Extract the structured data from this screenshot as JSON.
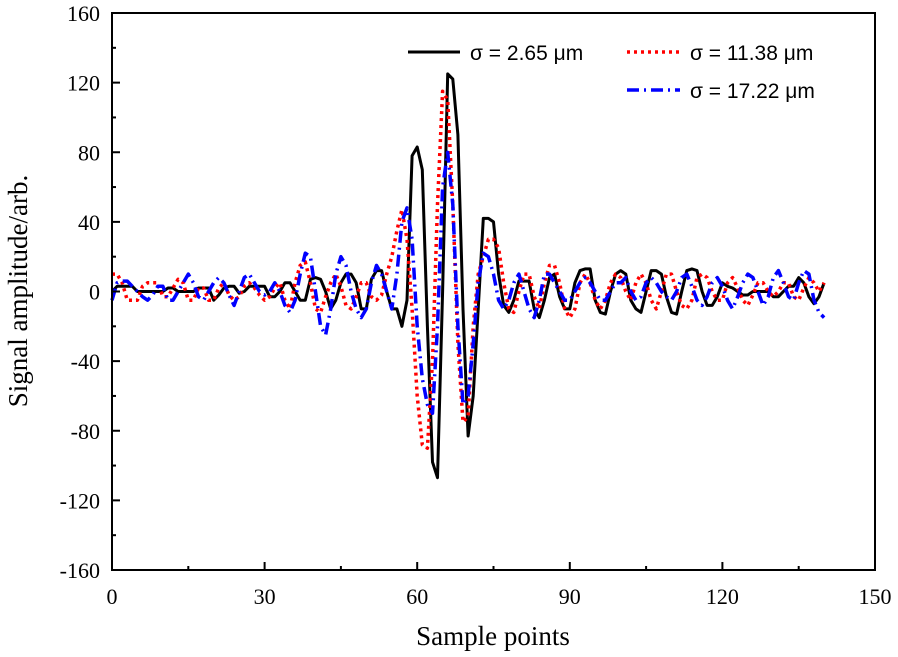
{
  "chart_data": {
    "type": "line",
    "title": "",
    "xlabel": "Sample points",
    "ylabel": "Signal amplitude/arb.",
    "xlim": [
      0,
      150
    ],
    "ylim": [
      -160,
      160
    ],
    "xticks": [
      "0",
      "30",
      "60",
      "90",
      "120",
      "150"
    ],
    "yticks": [
      "160",
      "120",
      "80",
      "40",
      "0",
      "-40",
      "-80",
      "-120",
      "-160"
    ],
    "grid": false,
    "legend_position": "top-right",
    "x_start": 0,
    "x_step": 1,
    "series": [
      {
        "name": "σ = 2.65 μm",
        "color": "#000000",
        "style": "solid",
        "values": [
          0,
          3,
          3,
          3,
          3,
          0,
          0,
          0,
          0,
          0,
          0,
          2,
          2,
          0,
          0,
          0,
          0,
          2,
          2,
          2,
          -5,
          -2,
          2,
          3,
          3,
          -1,
          0,
          3,
          3,
          3,
          3,
          -3,
          -3,
          0,
          5,
          5,
          0,
          -5,
          -5,
          7,
          8,
          7,
          0,
          -10,
          -5,
          5,
          10,
          10,
          5,
          -10,
          -10,
          7,
          12,
          12,
          0,
          -10,
          -10,
          -20,
          -5,
          78,
          83,
          70,
          -20,
          -98,
          -107,
          0,
          125,
          122,
          90,
          -10,
          -83,
          -60,
          -10,
          42,
          42,
          40,
          10,
          -8,
          -12,
          -5,
          6,
          6,
          6,
          -10,
          -15,
          -5,
          8,
          10,
          -3,
          -10,
          -10,
          5,
          12,
          13,
          13,
          -5,
          -12,
          -13,
          0,
          10,
          12,
          10,
          -5,
          -10,
          -12,
          0,
          12,
          12,
          10,
          -3,
          -12,
          -13,
          0,
          12,
          13,
          12,
          0,
          -8,
          -8,
          -3,
          5,
          3,
          2,
          0,
          -2,
          -2,
          0,
          0,
          0,
          0,
          -3,
          -3,
          0,
          3,
          3,
          8,
          5,
          -3,
          -7,
          -3,
          5
        ]
      },
      {
        "name": "σ = 11.38 μm",
        "color": "#ff0000",
        "style": "dotted",
        "values": [
          10,
          10,
          5,
          -5,
          -5,
          -5,
          3,
          5,
          5,
          5,
          -3,
          -3,
          2,
          7,
          5,
          -5,
          -5,
          2,
          2,
          -5,
          -5,
          2,
          5,
          -2,
          -5,
          -3,
          3,
          5,
          2,
          -2,
          -5,
          -3,
          2,
          5,
          -5,
          -10,
          5,
          15,
          17,
          5,
          -10,
          -12,
          -3,
          5,
          10,
          3,
          -8,
          -10,
          -3,
          5,
          5,
          -3,
          -5,
          -2,
          10,
          20,
          35,
          47,
          30,
          -10,
          -60,
          -88,
          -90,
          -40,
          50,
          115,
          110,
          50,
          -30,
          -75,
          -72,
          -20,
          10,
          20,
          30,
          30,
          25,
          5,
          -10,
          -12,
          0,
          10,
          10,
          -3,
          -10,
          5,
          15,
          15,
          5,
          -10,
          -15,
          -10,
          5,
          10,
          5,
          -5,
          -10,
          -5,
          5,
          10,
          8,
          0,
          -5,
          5,
          10,
          5,
          -5,
          -10,
          0,
          10,
          10,
          0,
          -8,
          -10,
          -5,
          8,
          10,
          8,
          0,
          -5,
          -5,
          5,
          8,
          2,
          -5,
          -8,
          -2,
          5,
          5,
          0,
          -3,
          0,
          5,
          5,
          -3,
          -5,
          2,
          8,
          5,
          0,
          5
        ]
      },
      {
        "name": "σ = 17.22 μm",
        "color": "#0000ff",
        "style": "dashdot",
        "values": [
          -5,
          5,
          6,
          6,
          3,
          0,
          -3,
          -5,
          -2,
          3,
          3,
          -5,
          -5,
          0,
          5,
          10,
          5,
          -3,
          -5,
          0,
          5,
          8,
          5,
          -2,
          -8,
          0,
          8,
          10,
          5,
          0,
          -2,
          0,
          5,
          0,
          -8,
          -12,
          -5,
          10,
          22,
          20,
          0,
          -20,
          -25,
          -10,
          10,
          20,
          15,
          0,
          -10,
          -15,
          -10,
          5,
          15,
          10,
          0,
          -10,
          10,
          40,
          48,
          30,
          -20,
          -50,
          -65,
          -70,
          -20,
          60,
          80,
          50,
          -20,
          -65,
          -60,
          -30,
          5,
          22,
          20,
          10,
          -5,
          -10,
          -5,
          5,
          10,
          0,
          -10,
          -15,
          -5,
          10,
          10,
          5,
          0,
          -5,
          -5,
          0,
          5,
          8,
          5,
          0,
          -5,
          -5,
          0,
          5,
          5,
          8,
          0,
          -5,
          -3,
          5,
          8,
          5,
          0,
          -3,
          -5,
          0,
          8,
          10,
          3,
          -5,
          -8,
          -3,
          5,
          8,
          3,
          -5,
          -10,
          -3,
          5,
          10,
          8,
          0,
          -8,
          -3,
          8,
          12,
          5,
          -3,
          -5,
          5,
          12,
          10,
          -5,
          -12,
          -15
        ]
      }
    ]
  }
}
